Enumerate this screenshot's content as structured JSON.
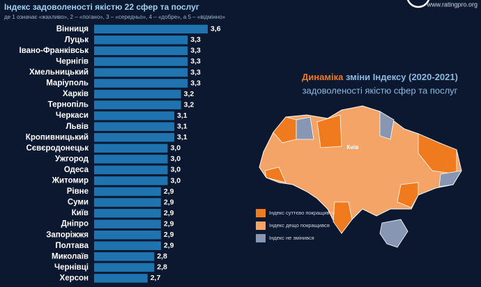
{
  "chart_data": {
    "type": "bar",
    "orientation": "horizontal",
    "title": "Індекс задоволеності якістю 22 сфер та послуг",
    "subtitle": "де 1 означає «жахливо», 2 – «погано», 3 – «середньо», 4 – «добре», а 5 – «відмінно»",
    "categories": [
      "Вінниця",
      "Луцьк",
      "Івано-Франківськ",
      "Чернігів",
      "Хмельницький",
      "Маріуполь",
      "Харків",
      "Тернопіль",
      "Черкаси",
      "Львів",
      "Кропивницький",
      "Сєвєродонецьк",
      "Ужгород",
      "Одеса",
      "Житомир",
      "Рівне",
      "Суми",
      "Київ",
      "Дніпро",
      "Запоріжжя",
      "Полтава",
      "Миколаїв",
      "Чернівці",
      "Херсон"
    ],
    "values": [
      3.6,
      3.3,
      3.3,
      3.3,
      3.3,
      3.3,
      3.2,
      3.2,
      3.1,
      3.1,
      3.1,
      3.0,
      3.0,
      3.0,
      3.0,
      2.9,
      2.9,
      2.9,
      2.9,
      2.9,
      2.9,
      2.8,
      2.8,
      2.7
    ],
    "value_labels": [
      "3,6",
      "3,3",
      "3,3",
      "3,3",
      "3,3",
      "3,3",
      "3,2",
      "3,2",
      "3,1",
      "3,1",
      "3,1",
      "3,0",
      "3,0",
      "3,0",
      "3,0",
      "2,9",
      "2,9",
      "2,9",
      "2,9",
      "2,9",
      "2,9",
      "2,8",
      "2,8",
      "2,7"
    ],
    "color": "#1f74b0",
    "xlim": [
      1.9,
      3.6
    ]
  },
  "site": "www.ratingpro.org",
  "map": {
    "title_bold": "Динаміка",
    "title_rest": "зміни Індексу (2020-2021)",
    "subtitle": "задоволеності якістю сфер та послуг",
    "capital": "Київ",
    "legend": [
      {
        "label": "Індекс суттєво покращився",
        "color": "#f07a1e"
      },
      {
        "label": "Індекс дещо покращився",
        "color": "#f4a466"
      },
      {
        "label": "Індекс не змінився",
        "color": "#8797b3"
      }
    ]
  }
}
